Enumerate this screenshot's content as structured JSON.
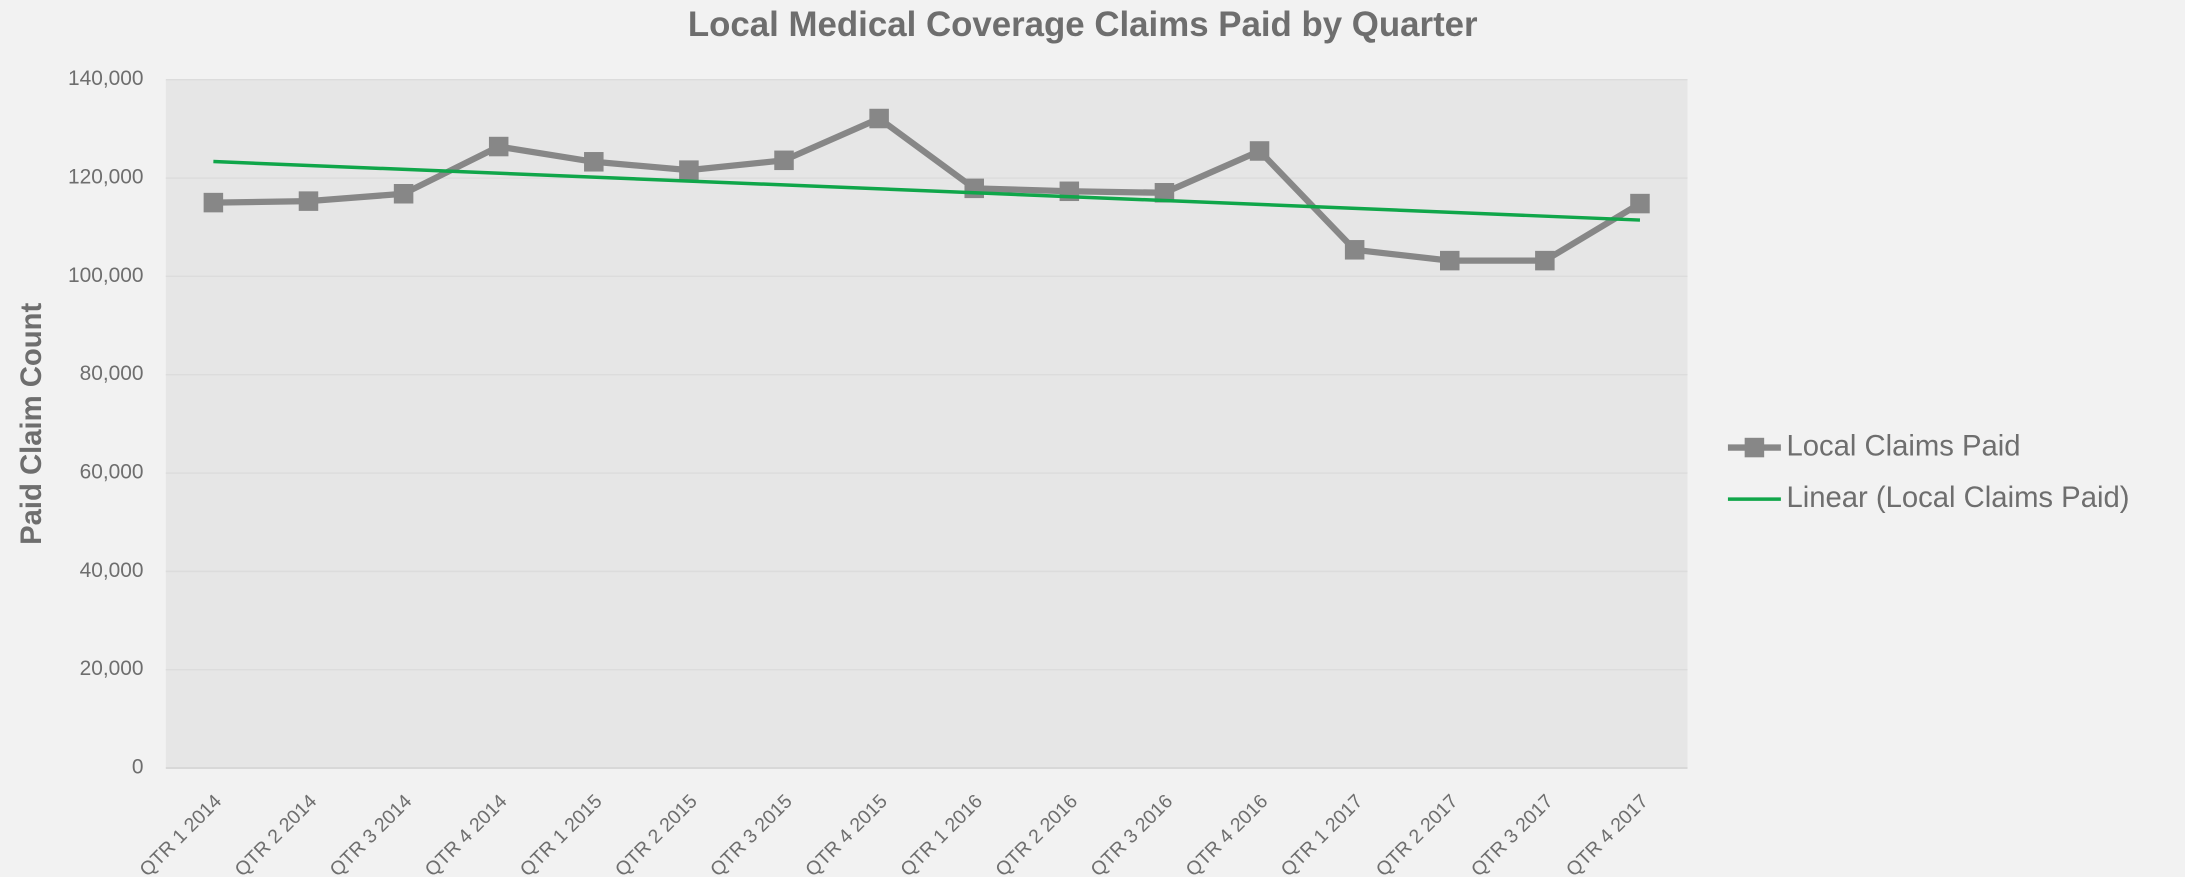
{
  "chart_data": {
    "type": "line",
    "title": "Local Medical Coverage Claims Paid by Quarter",
    "y_label": "Paid Claim Count",
    "categories": [
      "QTR 1 2014",
      "QTR 2 2014",
      "QTR 3 2014",
      "QTR 4 2014",
      "QTR 1 2015",
      "QTR 2 2015",
      "QTR 3 2015",
      "QTR 4 2015",
      "QTR 1 2016",
      "QTR 2 2016",
      "QTR 3 2016",
      "QTR 4 2016",
      "QTR 1 2017",
      "QTR 2 2017",
      "QTR 3 2017",
      "QTR 4 2017"
    ],
    "series": [
      {
        "name": "Local Claims Paid",
        "color": "#878787",
        "values": [
          115000,
          115300,
          116800,
          126400,
          123300,
          121600,
          123600,
          132100,
          117900,
          117300,
          117000,
          125500,
          105400,
          103200,
          103200,
          114800
        ]
      }
    ],
    "trendline": {
      "name": "Linear (Local Claims Paid)",
      "color": "#10a64a"
    },
    "ylim": [
      0,
      140000
    ],
    "yticks": [
      {
        "value": 0,
        "label": "0"
      },
      {
        "value": 20000,
        "label": "20,000"
      },
      {
        "value": 40000,
        "label": "40,000"
      },
      {
        "value": 60000,
        "label": "60,000"
      },
      {
        "value": 80000,
        "label": "80,000"
      },
      {
        "value": 100000,
        "label": "100,000"
      },
      {
        "value": 120000,
        "label": "120,000"
      },
      {
        "value": 140000,
        "label": "140,000"
      }
    ],
    "grid": true,
    "legend": "right"
  }
}
